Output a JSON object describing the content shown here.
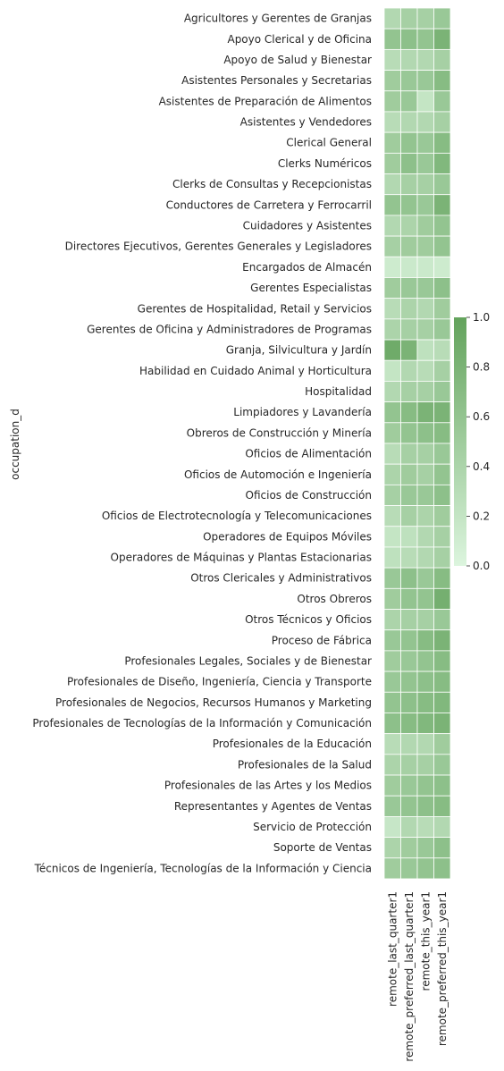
{
  "chart_data": {
    "type": "heatmap",
    "ylabel": "occupation_d",
    "xlabel": "",
    "columns": [
      "remote_last_quarter1",
      "remote_preferred_last_quarter1",
      "remote_this_year1",
      "remote_preferred_this_year1"
    ],
    "rows": [
      "Agricultores y Gerentes de Granjas",
      "Apoyo Clerical y de Oficina",
      "Apoyo de Salud y Bienestar",
      "Asistentes Personales y Secretarias",
      "Asistentes de Preparación de Alimentos",
      "Asistentes y Vendedores",
      "Clerical General",
      "Clerks Numéricos",
      "Clerks de Consultas y Recepcionistas",
      "Conductores de Carretera y Ferrocarril",
      "Cuidadores y Asistentes",
      "Directores Ejecutivos, Gerentes Generales y Legisladores",
      "Encargados de Almacén",
      "Gerentes Especialistas",
      "Gerentes de Hospitalidad, Retail y Servicios",
      "Gerentes de Oficina y Administradores de Programas",
      "Granja, Silvicultura y Jardín",
      "Habilidad en Cuidado Animal y Horticultura",
      "Hospitalidad",
      "Limpiadores y Lavandería",
      "Obreros de Construcción y Minería",
      "Oficios de Alimentación",
      "Oficios de Automoción e Ingeniería",
      "Oficios de Construcción",
      "Oficios de Electrotecnología y Telecomunicaciones",
      "Operadores de Equipos Móviles",
      "Operadores de Máquinas y Plantas Estacionarias",
      "Otros Clericales y Administrativos",
      "Otros Obreros",
      "Otros Técnicos y Oficios",
      "Proceso de Fábrica",
      "Profesionales Legales, Sociales y de Bienestar",
      "Profesionales de Diseño, Ingeniería, Ciencia y Transporte",
      "Profesionales de Negocios, Recursos Humanos y Marketing",
      "Profesionales de Tecnologías de la Información y Comunicación",
      "Profesionales de la Educación",
      "Profesionales de la Salud",
      "Profesionales de las Artes y los Medios",
      "Representantes y Agentes de Ventas",
      "Servicio de Protección",
      "Soporte de Ventas",
      "Técnicos de Ingeniería, Tecnologías de la Información y Ciencia"
    ],
    "values": [
      [
        0.35,
        0.45,
        0.45,
        0.55
      ],
      [
        0.6,
        0.65,
        0.6,
        0.8
      ],
      [
        0.3,
        0.35,
        0.35,
        0.45
      ],
      [
        0.5,
        0.55,
        0.55,
        0.7
      ],
      [
        0.5,
        0.55,
        0.2,
        0.55
      ],
      [
        0.3,
        0.35,
        0.35,
        0.45
      ],
      [
        0.5,
        0.6,
        0.55,
        0.7
      ],
      [
        0.5,
        0.65,
        0.55,
        0.75
      ],
      [
        0.35,
        0.45,
        0.45,
        0.55
      ],
      [
        0.6,
        0.6,
        0.55,
        0.8
      ],
      [
        0.35,
        0.4,
        0.5,
        0.6
      ],
      [
        0.45,
        0.5,
        0.5,
        0.6
      ],
      [
        0.12,
        0.15,
        0.15,
        0.12
      ],
      [
        0.5,
        0.55,
        0.55,
        0.65
      ],
      [
        0.3,
        0.4,
        0.35,
        0.5
      ],
      [
        0.4,
        0.45,
        0.45,
        0.55
      ],
      [
        0.9,
        0.8,
        0.25,
        0.3
      ],
      [
        0.2,
        0.35,
        0.3,
        0.45
      ],
      [
        0.35,
        0.45,
        0.45,
        0.55
      ],
      [
        0.6,
        0.7,
        0.8,
        0.8
      ],
      [
        0.5,
        0.6,
        0.65,
        0.7
      ],
      [
        0.3,
        0.45,
        0.45,
        0.55
      ],
      [
        0.4,
        0.5,
        0.45,
        0.6
      ],
      [
        0.45,
        0.55,
        0.55,
        0.65
      ],
      [
        0.3,
        0.45,
        0.4,
        0.5
      ],
      [
        0.2,
        0.25,
        0.35,
        0.45
      ],
      [
        0.25,
        0.3,
        0.35,
        0.45
      ],
      [
        0.55,
        0.65,
        0.55,
        0.7
      ],
      [
        0.5,
        0.6,
        0.6,
        0.85
      ],
      [
        0.4,
        0.45,
        0.45,
        0.55
      ],
      [
        0.55,
        0.6,
        0.7,
        0.8
      ],
      [
        0.5,
        0.55,
        0.6,
        0.7
      ],
      [
        0.55,
        0.6,
        0.65,
        0.7
      ],
      [
        0.6,
        0.65,
        0.7,
        0.75
      ],
      [
        0.65,
        0.7,
        0.75,
        0.8
      ],
      [
        0.3,
        0.35,
        0.35,
        0.5
      ],
      [
        0.4,
        0.45,
        0.45,
        0.55
      ],
      [
        0.5,
        0.55,
        0.6,
        0.65
      ],
      [
        0.55,
        0.6,
        0.65,
        0.7
      ],
      [
        0.18,
        0.35,
        0.3,
        0.35
      ],
      [
        0.4,
        0.5,
        0.55,
        0.65
      ],
      [
        0.5,
        0.55,
        0.6,
        0.65
      ]
    ],
    "colorbar": {
      "range": [
        0,
        1
      ],
      "ticks": [
        "0.0",
        "0.2",
        "0.4",
        "0.6",
        "0.8",
        "1.0"
      ]
    },
    "colors": {
      "low": "#dcf5de",
      "high": "#63a35c",
      "grid_lines": "#ffffff",
      "text": "#262626"
    }
  }
}
